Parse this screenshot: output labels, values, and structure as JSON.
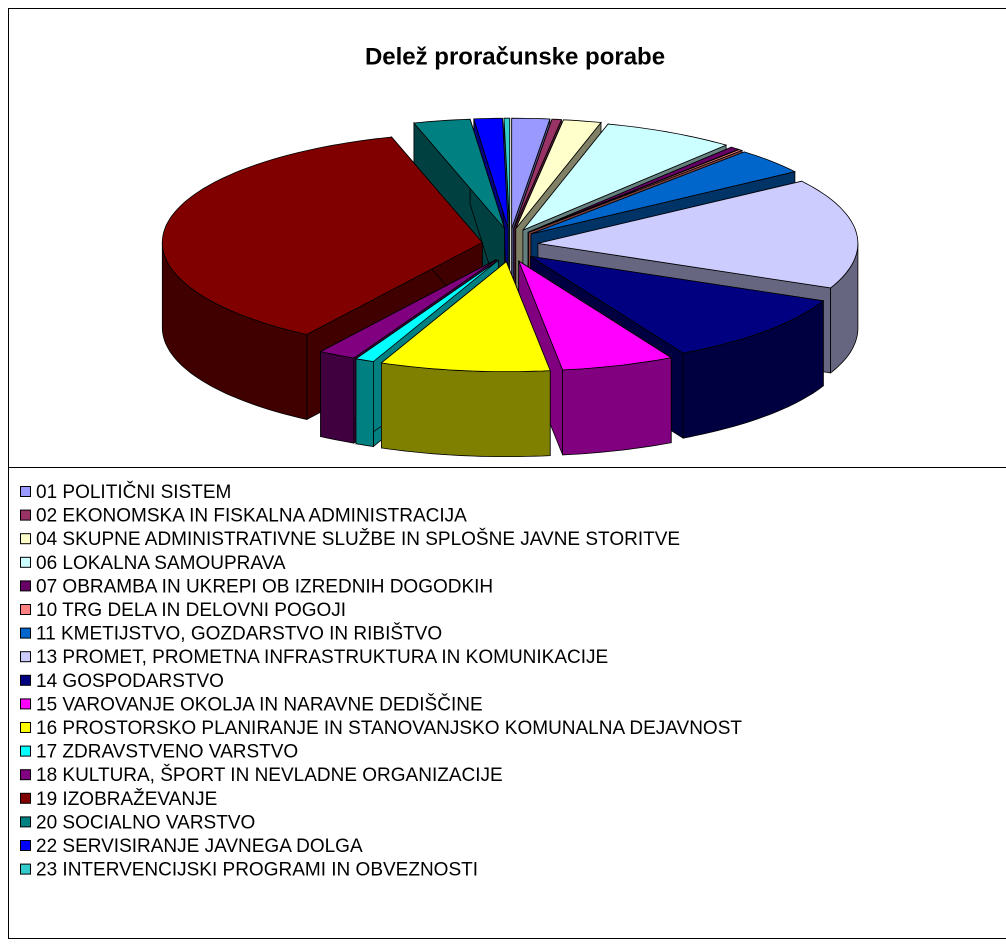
{
  "chart_data": {
    "type": "pie3d",
    "title": "Delež proračunske porabe",
    "categories": [
      "01 POLITIČNI SISTEM",
      "02 EKONOMSKA IN FISKALNA ADMINISTRACIJA",
      "04 SKUPNE ADMINISTRATIVNE SLUŽBE IN SPLOŠNE JAVNE STORITVE",
      "06 LOKALNA SAMOUPRAVA",
      "07 OBRAMBA IN UKREPI OB IZREDNIH DOGODKIH",
      "10 TRG DELA IN DELOVNI POGOJI",
      "11 KMETIJSTVO, GOZDARSTVO IN RIBIŠTVO",
      "13 PROMET, PROMETNA INFRASTRUKTURA IN KOMUNIKACIJE",
      "14 GOSPODARSTVO",
      "15 VAROVANJE OKOLJA IN NARAVNE DEDIŠČINE",
      "16 PROSTORSKO PLANIRANJE IN STANOVANJSKO KOMUNALNA DEJAVNOST",
      "17 ZDRAVSTVENO VARSTVO",
      "18 KULTURA, ŠPORT IN NEVLADNE ORGANIZACIJE",
      "19 IZOBRAŽEVANJE",
      "20 SOCIALNO VARSTVO",
      "22 SERVISIRANJE JAVNEGA DOLGA",
      "23 INTERVENCIJSKI PROGRAMI IN OBVEZNOSTI"
    ],
    "values": [
      2,
      0.5,
      2,
      7,
      0.5,
      0.2,
      4,
      17,
      11,
      6,
      9,
      1,
      2,
      38,
      3,
      1.5,
      0.3
    ],
    "colors": [
      "#9999FF",
      "#993366",
      "#FFFFCC",
      "#CCFFFF",
      "#660066",
      "#FF8080",
      "#0066CC",
      "#CCCCFF",
      "#000080",
      "#FF00FF",
      "#FFFF00",
      "#00FFFF",
      "#800080",
      "#800000",
      "#008080",
      "#0000FF",
      "#33CCCC"
    ],
    "legend": "bottom"
  }
}
